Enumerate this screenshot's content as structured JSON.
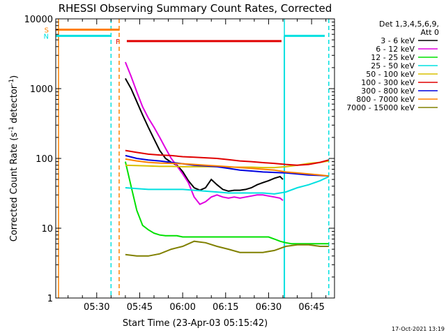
{
  "chart_data": {
    "type": "line",
    "title": "RHESSI Observing Summary Count Rates, Corrected",
    "xlabel": "Start Time (23-Apr-03 05:15:42)",
    "ylabel_main": "Corrected Count Rate (s",
    "ylabel_sup1": "-1",
    "ylabel_mid": " detector",
    "ylabel_sup2": "-1",
    "ylabel_end": ")",
    "y_scale": "log",
    "ylim": [
      1,
      10000
    ],
    "xlim": [
      "05:15:42",
      "06:53:00"
    ],
    "x_ticks": [
      "05:30",
      "05:45",
      "06:00",
      "06:15",
      "06:30",
      "06:45"
    ],
    "y_ticks": [
      "1",
      "10",
      "100",
      "1000",
      "10000"
    ],
    "legend": {
      "header": [
        "Det 1,3,4,5,6,9,",
        "Att 0"
      ],
      "entries": [
        {
          "label": "3 - 6 keV",
          "color": "#000000"
        },
        {
          "label": "6 - 12 keV",
          "color": "#e000e0"
        },
        {
          "label": "12 - 25 keV",
          "color": "#00e000"
        },
        {
          "label": "25 - 50 keV",
          "color": "#00e0e0"
        },
        {
          "label": "50 - 100 keV",
          "color": "#d8c000"
        },
        {
          "label": "100 - 300 keV",
          "color": "#e00000"
        },
        {
          "label": "300 - 800 keV",
          "color": "#0000e0"
        },
        {
          "label": "800 - 7000 keV",
          "color": "#ff8000"
        },
        {
          "label": "7000 - 15000 keV",
          "color": "#808000"
        }
      ]
    },
    "flags": [
      {
        "label": "S",
        "color": "#ff8000",
        "x_start": "05:15:42",
        "x_end": "05:38:00",
        "y": 7000
      },
      {
        "label": "N",
        "color": "#00e0e0",
        "x_start": "05:15:42",
        "x_end": "05:35:00",
        "y": 5700
      },
      {
        "label": "F",
        "color": "#e00000",
        "x_start": "05:40:30",
        "x_end": "06:34:30",
        "y": 4800
      }
    ],
    "night_intervals": [
      {
        "color": "#00e0e0",
        "x_start": "05:35:00",
        "x_end": "06:35:30"
      }
    ],
    "vertical_markers": [
      {
        "color": "#ff8000",
        "x": "05:16:40",
        "style": "solid"
      },
      {
        "color": "#ff8000",
        "x": "05:37:50",
        "style": "dashed"
      },
      {
        "color": "#00e0e0",
        "x": "05:35:00",
        "style": "dashed"
      },
      {
        "color": "#00e0e0",
        "x": "06:35:30",
        "style": "solid"
      },
      {
        "color": "#00e0e0",
        "x": "06:51:00",
        "style": "dashed"
      }
    ],
    "series": [
      {
        "name": "3 - 6 keV",
        "color": "#000000",
        "x": [
          "05:40",
          "05:42",
          "05:44",
          "05:46",
          "05:48",
          "05:50",
          "05:52",
          "05:54",
          "05:56",
          "05:58",
          "06:00",
          "06:02",
          "06:04",
          "06:06",
          "06:08",
          "06:10",
          "06:12",
          "06:14",
          "06:16",
          "06:18",
          "06:20",
          "06:22",
          "06:24",
          "06:26",
          "06:28",
          "06:30",
          "06:32",
          "06:34",
          "06:35"
        ],
        "y": [
          1400,
          1000,
          650,
          420,
          280,
          190,
          130,
          100,
          88,
          80,
          65,
          48,
          38,
          35,
          38,
          50,
          42,
          36,
          34,
          35,
          35,
          36,
          38,
          42,
          45,
          48,
          52,
          55,
          50
        ]
      },
      {
        "name": "6 - 12 keV",
        "color": "#e000e0",
        "x": [
          "05:40",
          "05:42",
          "05:44",
          "05:46",
          "05:48",
          "05:50",
          "05:52",
          "05:54",
          "05:56",
          "05:58",
          "06:00",
          "06:02",
          "06:04",
          "06:06",
          "06:08",
          "06:10",
          "06:12",
          "06:14",
          "06:16",
          "06:18",
          "06:20",
          "06:22",
          "06:24",
          "06:26",
          "06:28",
          "06:30",
          "06:32",
          "06:34",
          "06:35"
        ],
        "y": [
          2400,
          1500,
          900,
          550,
          380,
          280,
          200,
          140,
          100,
          78,
          60,
          45,
          28,
          22,
          24,
          28,
          30,
          28,
          27,
          28,
          27,
          28,
          29,
          30,
          30,
          29,
          28,
          27,
          25
        ]
      },
      {
        "name": "12 - 25 keV",
        "color": "#00e000",
        "x": [
          "05:40",
          "05:42",
          "05:44",
          "05:46",
          "05:48",
          "05:50",
          "05:52",
          "05:54",
          "05:56",
          "05:58",
          "06:00",
          "06:02",
          "06:04",
          "06:06",
          "06:08",
          "06:10",
          "06:12",
          "06:14",
          "06:16",
          "06:18",
          "06:20",
          "06:22",
          "06:24",
          "06:26",
          "06:28",
          "06:30",
          "06:32",
          "06:34",
          "06:36",
          "06:38",
          "06:40",
          "06:42",
          "06:44",
          "06:46",
          "06:48",
          "06:50",
          "06:51"
        ],
        "y": [
          90,
          40,
          18,
          11,
          9.5,
          8.5,
          8,
          7.8,
          7.8,
          7.8,
          7.5,
          7.5,
          7.5,
          7.5,
          7.5,
          7.5,
          7.5,
          7.5,
          7.5,
          7.5,
          7.5,
          7.5,
          7.5,
          7.5,
          7.5,
          7.5,
          7,
          6.5,
          6.2,
          6,
          6,
          6,
          6,
          6,
          6,
          6,
          6
        ]
      },
      {
        "name": "25 - 50 keV",
        "color": "#00e0e0",
        "x": [
          "05:40",
          "05:44",
          "05:48",
          "05:52",
          "05:56",
          "06:00",
          "06:04",
          "06:08",
          "06:12",
          "06:16",
          "06:20",
          "06:24",
          "06:28",
          "06:32",
          "06:36",
          "06:40",
          "06:44",
          "06:48",
          "06:51"
        ],
        "y": [
          38,
          37,
          36,
          36,
          36,
          36,
          35,
          34,
          33,
          32,
          32,
          32,
          32,
          31,
          33,
          38,
          42,
          48,
          55
        ]
      },
      {
        "name": "50 - 100 keV",
        "color": "#d8c000",
        "x": [
          "05:40",
          "05:44",
          "05:48",
          "05:52",
          "05:56",
          "06:00",
          "06:04",
          "06:08",
          "06:12",
          "06:16",
          "06:20",
          "06:24",
          "06:28",
          "06:32",
          "06:36",
          "06:40",
          "06:44",
          "06:48",
          "06:51"
        ],
        "y": [
          80,
          79,
          78,
          77,
          77,
          76,
          76,
          76,
          76,
          75,
          75,
          75,
          74,
          74,
          76,
          80,
          85,
          88,
          92
        ]
      },
      {
        "name": "100 - 300 keV",
        "color": "#e00000",
        "x": [
          "05:40",
          "05:44",
          "05:48",
          "05:52",
          "05:56",
          "06:00",
          "06:04",
          "06:08",
          "06:12",
          "06:16",
          "06:20",
          "06:24",
          "06:28",
          "06:32",
          "06:36",
          "06:40",
          "06:44",
          "06:48",
          "06:51"
        ],
        "y": [
          130,
          122,
          115,
          112,
          110,
          106,
          104,
          102,
          100,
          96,
          92,
          90,
          87,
          85,
          82,
          80,
          82,
          88,
          95
        ]
      },
      {
        "name": "300 - 800 keV",
        "color": "#0000e0",
        "x": [
          "05:40",
          "05:44",
          "05:48",
          "05:52",
          "05:56",
          "06:00",
          "06:04",
          "06:08",
          "06:12",
          "06:16",
          "06:20",
          "06:24",
          "06:28",
          "06:32",
          "06:36",
          "06:40",
          "06:44",
          "06:48",
          "06:51"
        ],
        "y": [
          110,
          100,
          95,
          92,
          88,
          84,
          80,
          78,
          76,
          72,
          68,
          66,
          64,
          63,
          62,
          60,
          58,
          57,
          56
        ]
      },
      {
        "name": "800 - 7000 keV",
        "color": "#ff8000",
        "x": [
          "05:40",
          "05:44",
          "05:48",
          "05:52",
          "05:56",
          "06:00",
          "06:04",
          "06:08",
          "06:12",
          "06:16",
          "06:20",
          "06:24",
          "06:28",
          "06:32",
          "06:36",
          "06:40",
          "06:44",
          "06:48",
          "06:51"
        ],
        "y": [
          98,
          92,
          88,
          86,
          85,
          84,
          82,
          80,
          78,
          76,
          74,
          72,
          70,
          68,
          64,
          62,
          60,
          58,
          56
        ]
      },
      {
        "name": "7000 - 15000 keV",
        "color": "#808000",
        "x": [
          "05:40",
          "05:44",
          "05:48",
          "05:52",
          "05:56",
          "06:00",
          "06:04",
          "06:08",
          "06:12",
          "06:16",
          "06:20",
          "06:24",
          "06:28",
          "06:32",
          "06:36",
          "06:40",
          "06:44",
          "06:48",
          "06:51"
        ],
        "y": [
          4.2,
          4,
          4,
          4.3,
          5,
          5.5,
          6.5,
          6.2,
          5.5,
          5,
          4.5,
          4.5,
          4.5,
          4.8,
          5.5,
          5.8,
          5.8,
          5.5,
          5.5
        ]
      }
    ]
  },
  "timestamp": "17-Oct-2021 13:19"
}
